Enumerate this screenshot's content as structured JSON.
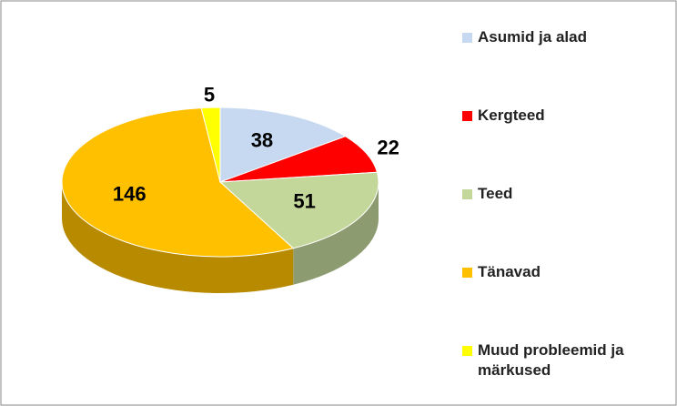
{
  "chart_data": {
    "type": "pie3d",
    "categories": [
      "Asumid ja alad",
      "Kergteed",
      "Teed",
      "Tänavad",
      "Muud probleemid ja märkused"
    ],
    "values": [
      38,
      22,
      51,
      146,
      5
    ],
    "colors": [
      "#c6d9f0",
      "#ff0000",
      "#c4d79b",
      "#ffc000",
      "#ffff00"
    ],
    "legend": "right"
  }
}
